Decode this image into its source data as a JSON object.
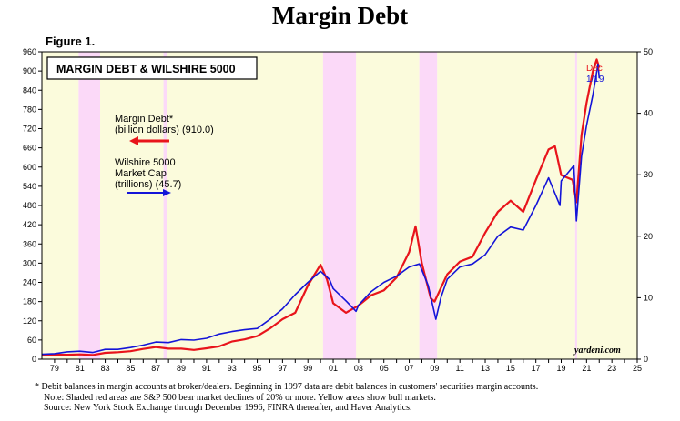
{
  "title": "Margin Debt",
  "figure_label": "Figure 1.",
  "chart_data": {
    "type": "line",
    "title": "MARGIN DEBT & WILSHIRE 5000",
    "x_range": [
      1978,
      2025
    ],
    "x_tick_years": [
      1979,
      1980,
      1981,
      1982,
      1983,
      1984,
      1985,
      1986,
      1987,
      1988,
      1989,
      1990,
      1991,
      1992,
      1993,
      1994,
      1995,
      1996,
      1997,
      1998,
      1999,
      2000,
      2001,
      2002,
      2003,
      2004,
      2005,
      2006,
      2007,
      2008,
      2009,
      2010,
      2011,
      2012,
      2013,
      2014,
      2015,
      2016,
      2017,
      2018,
      2019,
      2020,
      2021,
      2022,
      2023,
      2024,
      2025
    ],
    "x_tick_labels": [
      "79",
      "81",
      "83",
      "85",
      "87",
      "89",
      "91",
      "93",
      "95",
      "97",
      "99",
      "01",
      "03",
      "05",
      "07",
      "09",
      "11",
      "13",
      "15",
      "17",
      "19",
      "21",
      "23",
      "25"
    ],
    "left_axis": {
      "min": 0,
      "max": 960,
      "ticks": [
        0,
        60,
        120,
        180,
        240,
        300,
        360,
        420,
        480,
        540,
        600,
        660,
        720,
        780,
        840,
        900,
        960
      ]
    },
    "right_axis": {
      "min": 0,
      "max": 50,
      "ticks": [
        0,
        10,
        20,
        30,
        40,
        50
      ]
    },
    "bear_markets": [
      [
        1980.9,
        1982.6
      ],
      [
        1987.6,
        1987.9
      ],
      [
        2000.2,
        2002.8
      ],
      [
        2007.8,
        2009.2
      ],
      [
        2020.1,
        2020.25
      ]
    ],
    "bull_markets": [
      [
        1978,
        1980.9
      ],
      [
        1982.6,
        1987.6
      ],
      [
        1987.9,
        2000.2
      ],
      [
        2002.8,
        2007.8
      ],
      [
        2009.2,
        2020.1
      ],
      [
        2020.25,
        2025
      ]
    ],
    "colors": {
      "margin_debt": "#e8141b",
      "wilshire": "#1414d8",
      "bear": "#fbd9f8",
      "bull": "#fbfbdc"
    },
    "series": [
      {
        "name": "Margin Debt* (billion dollars) (910.0)",
        "axis": "left",
        "points": [
          [
            1978,
            12
          ],
          [
            1979,
            14
          ],
          [
            1980,
            14
          ],
          [
            1981,
            15
          ],
          [
            1982,
            13
          ],
          [
            1983,
            20
          ],
          [
            1984,
            22
          ],
          [
            1985,
            25
          ],
          [
            1986,
            32
          ],
          [
            1987,
            38
          ],
          [
            1988,
            33
          ],
          [
            1989,
            33
          ],
          [
            1990,
            29
          ],
          [
            1991,
            34
          ],
          [
            1992,
            40
          ],
          [
            1993,
            55
          ],
          [
            1994,
            62
          ],
          [
            1995,
            72
          ],
          [
            1996,
            96
          ],
          [
            1997,
            125
          ],
          [
            1998,
            145
          ],
          [
            1999,
            230
          ],
          [
            2000,
            295
          ],
          [
            2000.5,
            250
          ],
          [
            2001,
            175
          ],
          [
            2002,
            145
          ],
          [
            2003,
            168
          ],
          [
            2004,
            200
          ],
          [
            2005,
            215
          ],
          [
            2006,
            255
          ],
          [
            2007,
            335
          ],
          [
            2007.5,
            415
          ],
          [
            2008,
            300
          ],
          [
            2008.7,
            190
          ],
          [
            2009,
            180
          ],
          [
            2010,
            265
          ],
          [
            2011,
            305
          ],
          [
            2012,
            320
          ],
          [
            2013,
            395
          ],
          [
            2014,
            460
          ],
          [
            2015,
            495
          ],
          [
            2016,
            460
          ],
          [
            2017,
            560
          ],
          [
            2018,
            655
          ],
          [
            2018.5,
            665
          ],
          [
            2019,
            575
          ],
          [
            2019.9,
            560
          ],
          [
            2020.2,
            490
          ],
          [
            2020.6,
            700
          ],
          [
            2021,
            800
          ],
          [
            2021.5,
            900
          ],
          [
            2021.8,
            936
          ],
          [
            2022,
            910
          ]
        ]
      },
      {
        "name": "Wilshire 5000 Market Cap (trillions) (45.7)",
        "axis": "right",
        "points": [
          [
            1978,
            0.8
          ],
          [
            1979,
            0.9
          ],
          [
            1980,
            1.2
          ],
          [
            1981,
            1.3
          ],
          [
            1982,
            1.1
          ],
          [
            1983,
            1.6
          ],
          [
            1984,
            1.6
          ],
          [
            1985,
            1.9
          ],
          [
            1986,
            2.3
          ],
          [
            1987,
            2.8
          ],
          [
            1988,
            2.7
          ],
          [
            1989,
            3.2
          ],
          [
            1990,
            3.1
          ],
          [
            1991,
            3.4
          ],
          [
            1992,
            4.1
          ],
          [
            1993,
            4.5
          ],
          [
            1994,
            4.8
          ],
          [
            1995,
            5.0
          ],
          [
            1996,
            6.5
          ],
          [
            1997,
            8.2
          ],
          [
            1998,
            10.5
          ],
          [
            1999,
            12.5
          ],
          [
            2000,
            14.3
          ],
          [
            2000.7,
            13.0
          ],
          [
            2001,
            11.5
          ],
          [
            2002,
            9.5
          ],
          [
            2002.8,
            7.8
          ],
          [
            2003,
            8.8
          ],
          [
            2004,
            11.0
          ],
          [
            2005,
            12.5
          ],
          [
            2006,
            13.5
          ],
          [
            2007,
            15.0
          ],
          [
            2007.8,
            15.5
          ],
          [
            2008.5,
            12.0
          ],
          [
            2009.1,
            6.5
          ],
          [
            2009.5,
            10.0
          ],
          [
            2010,
            13.0
          ],
          [
            2011,
            15.0
          ],
          [
            2012,
            15.5
          ],
          [
            2013,
            17.0
          ],
          [
            2014,
            20.0
          ],
          [
            2015,
            21.5
          ],
          [
            2016,
            21.0
          ],
          [
            2017,
            25.0
          ],
          [
            2018,
            29.5
          ],
          [
            2018.9,
            25.0
          ],
          [
            2019,
            29.0
          ],
          [
            2020,
            31.5
          ],
          [
            2020.2,
            22.5
          ],
          [
            2020.6,
            33.0
          ],
          [
            2021,
            38.0
          ],
          [
            2021.5,
            43.0
          ],
          [
            2021.9,
            48.0
          ],
          [
            2022,
            45.7
          ]
        ]
      }
    ],
    "labels": {
      "margin_debt_line1": "Margin Debt*",
      "margin_debt_line2": "(billion dollars) (910.0)",
      "wilshire_line1": "Wilshire 5000",
      "wilshire_line2": "Market Cap",
      "wilshire_line3": "(trillions) (45.7)",
      "end_label_line1": "Dec",
      "end_label_line2": "1/19",
      "source_tag": "yardeni.com"
    }
  },
  "footnotes": {
    "line1": "*  Debit balances in margin accounts at broker/dealers. Beginning in 1997 data are debit balances in customers' securities margin accounts.",
    "line2": "Note: Shaded red areas are S&P 500 bear market declines of 20% or more. Yellow areas show bull markets.",
    "line3": "Source: New York Stock Exchange through December 1996, FINRA thereafter, and Haver Analytics."
  }
}
